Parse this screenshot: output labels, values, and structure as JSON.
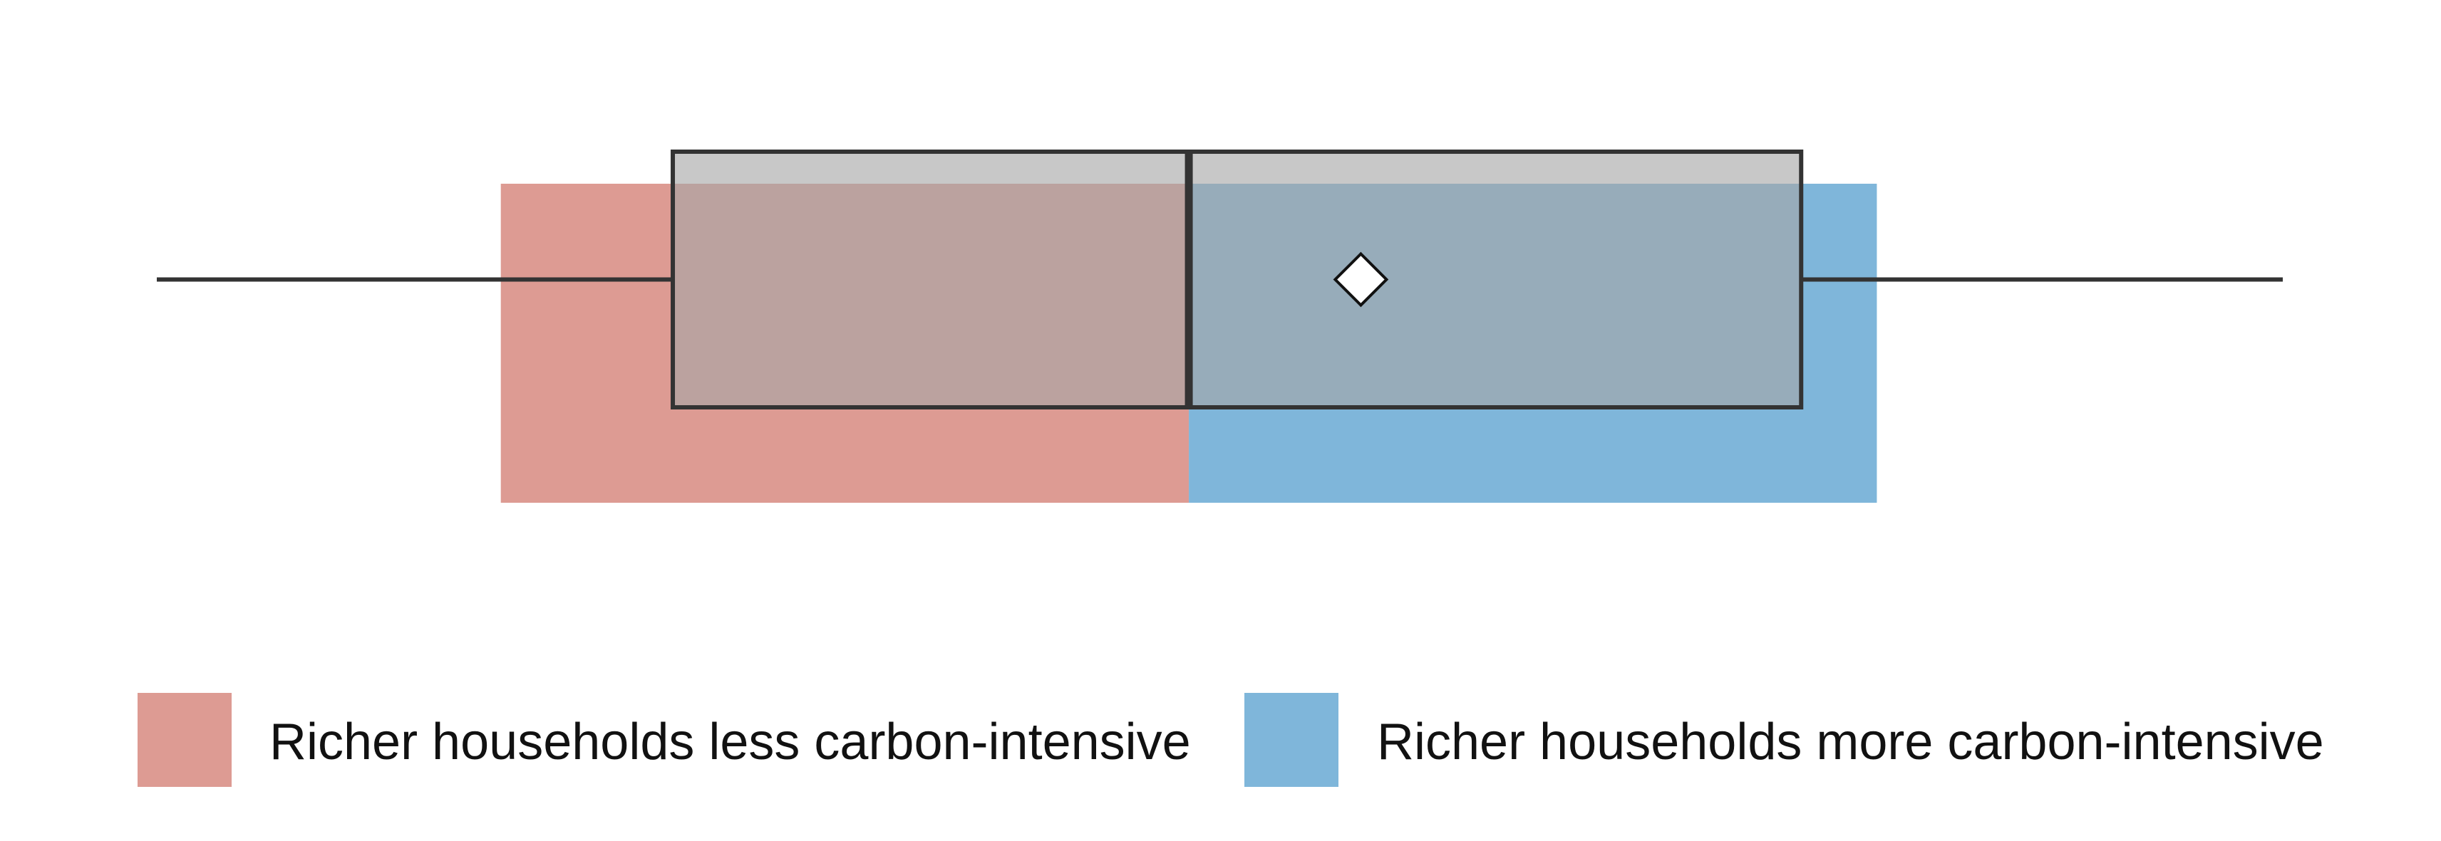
{
  "chart_data": {
    "type": "box",
    "bands": [
      {
        "name": "Richer households less carbon-intensive",
        "range": [
          -2.0,
          0.0
        ],
        "color": "#dd9b93"
      },
      {
        "name": "Richer households more carbon-intensive",
        "range": [
          0.0,
          2.0
        ],
        "color": "#7fb6da"
      }
    ],
    "boxplot": {
      "whisker_low": -3.0,
      "q1": -1.5,
      "median": 0.0,
      "q3": 1.78,
      "whisker_high": 3.18,
      "mean": 0.5
    },
    "xlim": [
      -3.0,
      3.18
    ],
    "xlabel": "",
    "ylabel": "",
    "title": "",
    "grid": false,
    "legend": {
      "placement": "bottom",
      "items": [
        {
          "label": "Richer households less carbon-intensive",
          "color": "#dd9b93"
        },
        {
          "label": "Richer households more carbon-intensive",
          "color": "#7fb6da"
        }
      ]
    },
    "colors": {
      "box_fill": "#a6a6a6",
      "box_edge": "#333333",
      "mean_marker_fill": "#ffffff"
    }
  }
}
